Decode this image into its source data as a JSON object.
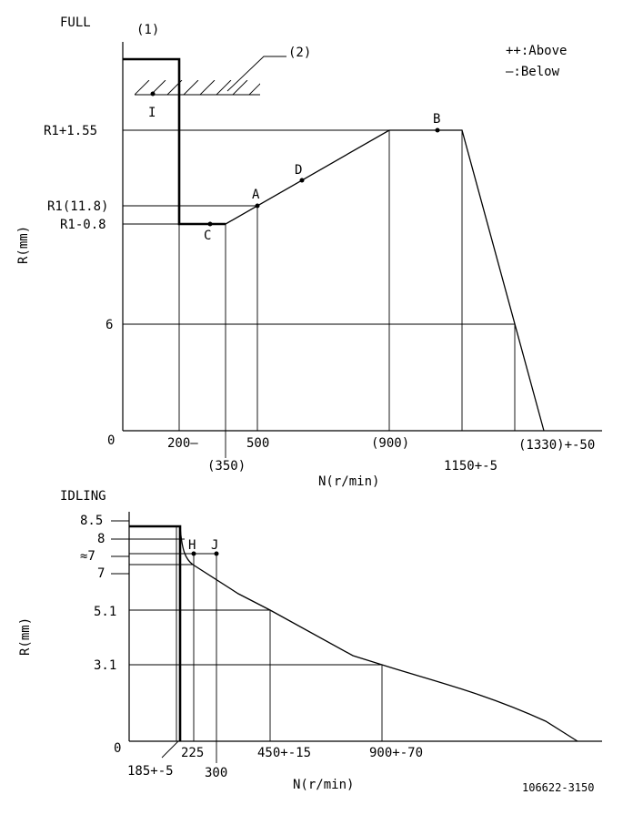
{
  "full": {
    "title": "FULL",
    "label_1": "(1)",
    "label_2": "(2)",
    "legend_above": "++:Above",
    "legend_below": "—:Below",
    "y_axis_label": "R(mm)",
    "x_axis_label": "N(r/min)",
    "origin": "0",
    "y_ticks": [
      "R1+1.55",
      "R1(11.8)",
      "R1-0.8",
      "6"
    ],
    "x_ticks": [
      "200—",
      "(350)",
      "500",
      "(900)",
      "1150+-5",
      "(1330)+-50"
    ],
    "points": [
      "I",
      "A",
      "B",
      "C",
      "D"
    ]
  },
  "idling": {
    "title": "IDLING",
    "y_axis_label": "R(mm)",
    "x_axis_label": "N(r/min)",
    "origin": "0",
    "y_ticks": [
      "8.5",
      "8",
      "≈7",
      "7",
      "5.1",
      "3.1"
    ],
    "x_ticks": [
      "185+-5",
      "225",
      "300",
      "450+-15",
      "900+-70"
    ],
    "points": [
      "H",
      "J"
    ]
  },
  "figure_id": "106622-3150"
}
